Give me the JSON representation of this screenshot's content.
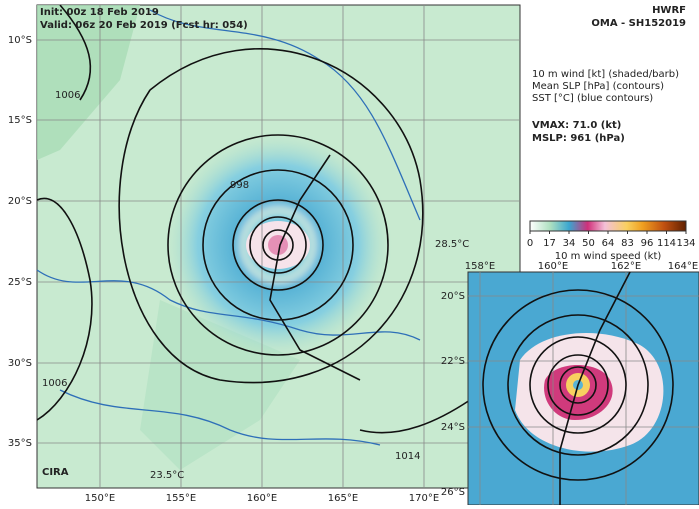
{
  "header": {
    "init": "Init: 00z 18 Feb 2019",
    "valid": "Valid: 06z 20 Feb 2019 (Fcst hr: 054)",
    "model": "HWRF",
    "storm": "OMA - SH152019"
  },
  "legend_lines": [
    "10 m wind [kt] (shaded/barb)",
    "Mean SLP [hPa] (contours)",
    "SST [°C] (blue contours)"
  ],
  "stats": [
    "VMAX:  71.0 (kt)",
    "MSLP:  961 (hPa)"
  ],
  "colorbar": {
    "ticks": [
      0,
      17,
      34,
      50,
      64,
      83,
      96,
      114,
      134
    ],
    "label": "10 m wind speed (kt)"
  },
  "main_map": {
    "lat_labels": [
      "10°S",
      "15°S",
      "20°S",
      "25°S",
      "30°S",
      "35°S"
    ],
    "lon_labels": [
      "150°E",
      "155°E",
      "160°E",
      "165°E",
      "170°E"
    ],
    "contour_labels": [
      "1006",
      "998",
      "1006",
      "1014",
      "23.5°C",
      "28.5°C"
    ]
  },
  "inset_map": {
    "lat_labels": [
      "20°S",
      "22°S",
      "24°S",
      "26°S"
    ],
    "lon_labels": [
      "158°E",
      "160°E",
      "162°E",
      "164°E"
    ]
  },
  "logo": "CIRA"
}
